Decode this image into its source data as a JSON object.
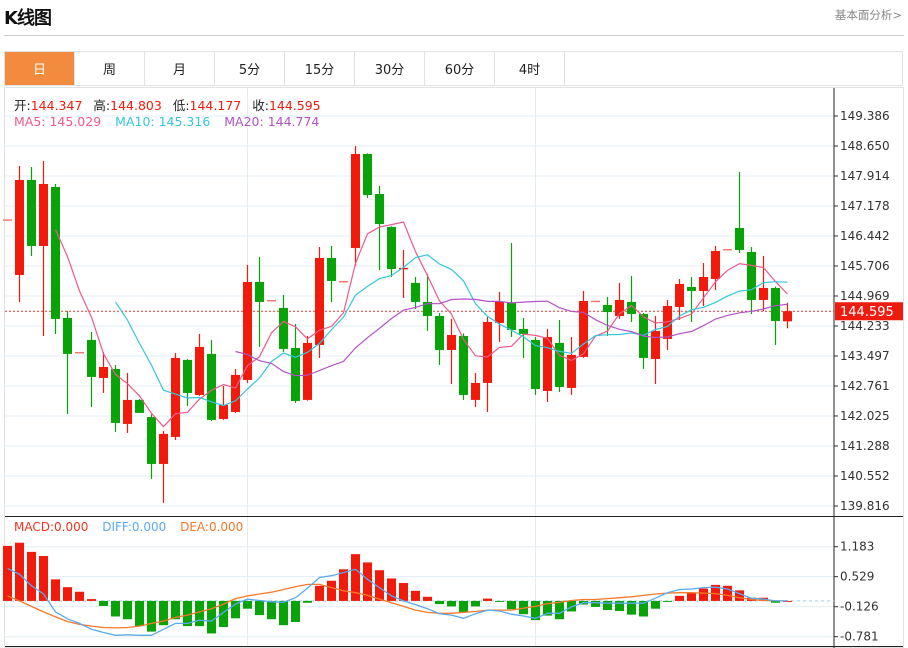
{
  "header": {
    "title": "K线图",
    "fundamental_link": "基本面分析>"
  },
  "tabs": [
    {
      "label": "日",
      "active": true
    },
    {
      "label": "周"
    },
    {
      "label": "月"
    },
    {
      "label": "5分"
    },
    {
      "label": "15分"
    },
    {
      "label": "30分"
    },
    {
      "label": "60分"
    },
    {
      "label": "4时"
    }
  ],
  "ohlc_info": {
    "open_label": "开:",
    "open": "144.347",
    "high_label": "高:",
    "high": "144.803",
    "low_label": "低:",
    "low": "144.177",
    "close_label": "收:",
    "close": "144.595"
  },
  "ma_info": {
    "ma5": "MA5: 145.029",
    "ma10": "MA10: 145.316",
    "ma20": "MA20: 144.774"
  },
  "macd_info": {
    "macd": "MACD:0.000",
    "diff": "DIFF:0.000",
    "dea": "DEA:0.000"
  },
  "current_price": "144.595",
  "colors": {
    "up": "#f21a0b",
    "down": "#07a307",
    "accent": "#f28b3d",
    "ma5": "#ee5a8c",
    "ma10": "#35c6dc",
    "ma20": "#b352c6",
    "diff": "#5aaaf0",
    "dea": "#f5792a"
  },
  "chart_data": [
    {
      "type": "candlestick",
      "ylim": [
        139.816,
        149.386
      ],
      "y_ticks": [
        "149.386",
        "148.650",
        "147.914",
        "147.178",
        "146.442",
        "145.706",
        "144.969",
        "144.233",
        "143.497",
        "142.761",
        "142.025",
        "141.288",
        "140.552",
        "139.816"
      ],
      "grid": true,
      "up_color_meaning": "red = close above open",
      "ohlc": [
        [
          146.85,
          146.85,
          146.85,
          146.85
        ],
        [
          145.485,
          148.16,
          144.82,
          147.816
        ],
        [
          147.816,
          148.135,
          145.95,
          146.197
        ],
        [
          146.197,
          148.282,
          143.989,
          147.718
        ],
        [
          147.644,
          147.718,
          144.038,
          144.406
        ],
        [
          144.43,
          144.602,
          142.075,
          143.547
        ],
        [
          143.596,
          143.596,
          143.596,
          143.596
        ],
        [
          143.891,
          144.087,
          142.247,
          142.983
        ],
        [
          142.958,
          143.596,
          142.59,
          143.228
        ],
        [
          143.179,
          143.277,
          141.634,
          141.854
        ],
        [
          141.83,
          143.081,
          141.609,
          142.419
        ],
        [
          142.419,
          142.44,
          142.1,
          142.1
        ],
        [
          141.999,
          142.07,
          140.48,
          140.848
        ],
        [
          140.848,
          141.658,
          139.892,
          141.585
        ],
        [
          141.511,
          143.572,
          141.437,
          143.449
        ],
        [
          143.4,
          143.42,
          142.271,
          142.59
        ],
        [
          142.541,
          144.038,
          142.52,
          143.719
        ],
        [
          143.547,
          143.891,
          141.9,
          141.928
        ],
        [
          141.952,
          142.762,
          141.93,
          142.296
        ],
        [
          142.124,
          143.179,
          142.1,
          143.032
        ],
        [
          142.909,
          145.731,
          142.836,
          145.313
        ],
        [
          145.313,
          145.927,
          143.719,
          144.823
        ],
        [
          144.872,
          144.872,
          144.872,
          144.872
        ],
        [
          144.676,
          144.995,
          143.596,
          143.67
        ],
        [
          143.694,
          144.283,
          142.345,
          142.394
        ],
        [
          142.419,
          143.989,
          142.4,
          143.817
        ],
        [
          143.768,
          146.172,
          143.449,
          145.902
        ],
        [
          145.902,
          146.197,
          144.823,
          145.338
        ],
        [
          145.338,
          145.338,
          145.338,
          145.338
        ],
        [
          146.148,
          148.65,
          145.706,
          148.454
        ],
        [
          148.454,
          148.47,
          147.374,
          147.448
        ],
        [
          147.472,
          147.669,
          145.608,
          146.736
        ],
        [
          146.663,
          146.68,
          145.436,
          145.632
        ],
        [
          145.63,
          146.099,
          144.921,
          145.66
        ],
        [
          145.289,
          145.436,
          144.651,
          144.823
        ],
        [
          144.823,
          145.51,
          144.112,
          144.479
        ],
        [
          144.479,
          144.55,
          143.277,
          143.645
        ],
        [
          143.645,
          144.406,
          142.811,
          144.013
        ],
        [
          143.989,
          144.05,
          142.419,
          142.541
        ],
        [
          142.419,
          143.081,
          142.247,
          142.836
        ],
        [
          142.836,
          144.455,
          142.124,
          144.332
        ],
        [
          144.308,
          145.068,
          143.842,
          144.823
        ],
        [
          144.798,
          146.27,
          143.964,
          144.136
        ],
        [
          144.161,
          144.43,
          143.449,
          144.038
        ],
        [
          143.891,
          143.964,
          142.541,
          142.688
        ],
        [
          142.639,
          144.161,
          142.37,
          143.964
        ],
        [
          143.817,
          144.381,
          142.614,
          142.737
        ],
        [
          142.713,
          143.964,
          142.541,
          143.523
        ],
        [
          143.474,
          145.093,
          143.45,
          144.847
        ],
        [
          144.855,
          144.855,
          144.855,
          144.855
        ],
        [
          144.749,
          144.946,
          143.989,
          144.577
        ],
        [
          144.479,
          145.289,
          144.406,
          144.872
        ],
        [
          144.823,
          145.461,
          144.332,
          144.528
        ],
        [
          144.528,
          144.55,
          143.179,
          143.449
        ],
        [
          143.424,
          144.479,
          142.811,
          144.112
        ],
        [
          143.915,
          144.872,
          143.645,
          144.725
        ],
        [
          144.7,
          145.387,
          144.381,
          145.264
        ],
        [
          145.191,
          145.436,
          144.332,
          145.093
        ],
        [
          145.093,
          145.779,
          144.725,
          145.436
        ],
        [
          145.387,
          146.197,
          145.117,
          146.074
        ],
        [
          146.123,
          146.123,
          146.123,
          146.123
        ],
        [
          146.638,
          148.012,
          146.025,
          146.099
        ],
        [
          146.05,
          146.172,
          144.528,
          144.872
        ],
        [
          144.872,
          145.951,
          144.602,
          145.166
        ],
        [
          145.166,
          145.2,
          143.768,
          144.357
        ],
        [
          144.347,
          144.803,
          144.177,
          144.595
        ]
      ],
      "moving_averages": [
        5,
        10,
        20
      ],
      "last_price": 144.595
    },
    {
      "type": "bar+line",
      "ylim": [
        -0.781,
        1.183
      ],
      "y_ticks": [
        "1.183",
        "0.529",
        "-0.126",
        "-0.781"
      ],
      "macd": [
        1.2,
        1.27,
        1.07,
        0.98,
        0.47,
        0.3,
        0.2,
        0.04,
        -0.11,
        -0.34,
        -0.4,
        -0.55,
        -0.67,
        -0.53,
        -0.4,
        -0.55,
        -0.55,
        -0.71,
        -0.57,
        -0.38,
        -0.17,
        -0.31,
        -0.4,
        -0.53,
        -0.46,
        -0.04,
        0.33,
        0.44,
        0.69,
        1.02,
        0.84,
        0.67,
        0.49,
        0.39,
        0.22,
        0.09,
        -0.07,
        -0.12,
        -0.24,
        -0.12,
        0.05,
        -0.01,
        -0.18,
        -0.29,
        -0.42,
        -0.32,
        -0.4,
        -0.23,
        -0.08,
        -0.13,
        -0.2,
        -0.22,
        -0.3,
        -0.34,
        -0.17,
        -0.01,
        0.11,
        0.17,
        0.27,
        0.35,
        0.33,
        0.23,
        0.07,
        0.07,
        -0.04,
        0.0
      ],
      "diff": [
        0.71,
        0.58,
        0.33,
        0.15,
        -0.24,
        -0.39,
        -0.49,
        -0.62,
        -0.69,
        -0.75,
        -0.74,
        -0.75,
        -0.75,
        -0.62,
        -0.49,
        -0.49,
        -0.42,
        -0.44,
        -0.25,
        -0.07,
        0.04,
        0.01,
        -0.02,
        -0.03,
        0.07,
        0.28,
        0.51,
        0.55,
        0.62,
        0.69,
        0.47,
        0.29,
        0.11,
        0.0,
        -0.08,
        -0.17,
        -0.28,
        -0.31,
        -0.38,
        -0.28,
        -0.2,
        -0.22,
        -0.29,
        -0.33,
        -0.38,
        -0.27,
        -0.27,
        -0.13,
        -0.04,
        -0.04,
        -0.05,
        -0.05,
        -0.05,
        -0.05,
        0.06,
        0.18,
        0.25,
        0.26,
        0.29,
        0.3,
        0.26,
        0.16,
        0.06,
        0.04,
        0.0,
        0.0
      ],
      "dea": [
        0.11,
        0.0,
        -0.12,
        -0.24,
        -0.35,
        -0.45,
        -0.51,
        -0.55,
        -0.58,
        -0.59,
        -0.58,
        -0.55,
        -0.49,
        -0.44,
        -0.36,
        -0.31,
        -0.24,
        -0.17,
        -0.07,
        0.05,
        0.11,
        0.15,
        0.19,
        0.25,
        0.31,
        0.36,
        0.36,
        0.29,
        0.22,
        0.18,
        0.12,
        0.04,
        -0.04,
        -0.12,
        -0.2,
        -0.25,
        -0.27,
        -0.27,
        -0.25,
        -0.23,
        -0.2,
        -0.2,
        -0.2,
        -0.16,
        -0.12,
        -0.06,
        -0.03,
        0.01,
        0.03,
        0.03,
        0.05,
        0.07,
        0.09,
        0.12,
        0.15,
        0.17,
        0.18,
        0.18,
        0.17,
        0.16,
        0.12,
        0.07,
        0.03,
        0.01,
        0.0,
        0.0
      ]
    }
  ]
}
